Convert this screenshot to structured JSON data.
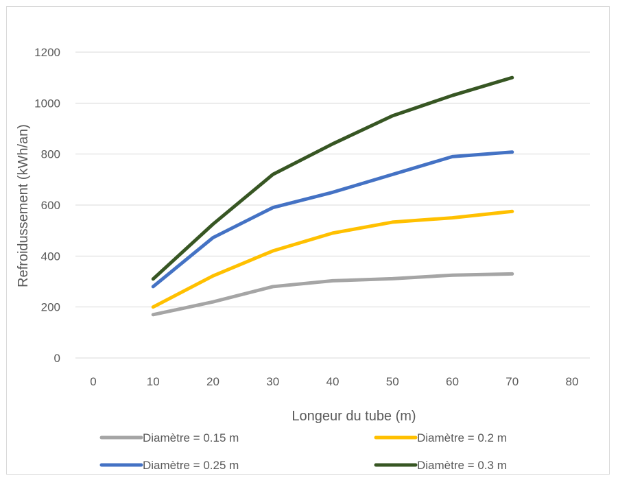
{
  "chart_data": {
    "type": "line",
    "xlabel": "Longeur du tube (m)",
    "ylabel": "Refroidussement (kWh/an)",
    "x_ticks": [
      "0",
      "10",
      "20",
      "30",
      "40",
      "50",
      "60",
      "70",
      "80"
    ],
    "y_ticks": [
      "0",
      "200",
      "400",
      "600",
      "800",
      "1000",
      "1200"
    ],
    "xlim": [
      0,
      80
    ],
    "ylim": [
      0,
      1200
    ],
    "grid": "horizontal",
    "legend_position": "bottom",
    "x": [
      10,
      20,
      30,
      40,
      50,
      60,
      70
    ],
    "series": [
      {
        "name": "Diamètre = 0.15 m",
        "color": "#a5a5a5",
        "values": [
          170,
          220,
          280,
          303,
          311,
          325,
          330
        ]
      },
      {
        "name": "Diamètre = 0.2 m",
        "color": "#ffc000",
        "values": [
          200,
          322,
          420,
          490,
          533,
          550,
          575
        ]
      },
      {
        "name": "Diamètre = 0.25 m",
        "color": "#4472c4",
        "values": [
          280,
          472,
          590,
          650,
          720,
          790,
          808
        ]
      },
      {
        "name": "Diamètre = 0.3 m",
        "color": "#375623",
        "values": [
          310,
          525,
          720,
          840,
          950,
          1030,
          1100
        ]
      }
    ]
  }
}
